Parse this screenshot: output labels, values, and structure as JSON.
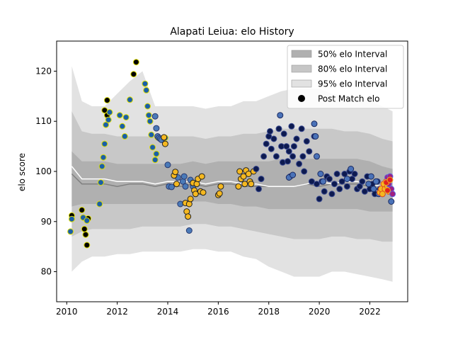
{
  "chart_data": {
    "type": "scatter",
    "title": "Alapati Leiua: elo History",
    "xlabel": "",
    "ylabel": "elo score",
    "xlim": [
      2009.6,
      2023.5
    ],
    "ylim": [
      74,
      126
    ],
    "x_ticks": [
      2010,
      2012,
      2014,
      2016,
      2018,
      2020,
      2022
    ],
    "y_ticks": [
      80,
      90,
      100,
      110,
      120
    ],
    "legend": {
      "placement": "top-right",
      "entries": [
        {
          "label": "50% elo Interval",
          "color": "#b0b0b0"
        },
        {
          "label": "80% elo Interval",
          "color": "#c6c6c6"
        },
        {
          "label": "95% elo Interval",
          "color": "#e2e2e2"
        },
        {
          "label": "Post Match elo",
          "color": "#000000"
        }
      ]
    },
    "interval_colors": {
      "i95": "#e2e2e2",
      "i80": "#c8c8c8",
      "i50": "#b0b0b0",
      "median": "#808080",
      "mean": "#ffffff"
    },
    "intervals": {
      "x": [
        2010.2,
        2010.6,
        2011.0,
        2011.5,
        2012.0,
        2012.5,
        2013.0,
        2013.5,
        2014.0,
        2014.5,
        2015.0,
        2015.5,
        2016.0,
        2016.5,
        2017.0,
        2017.5,
        2018.0,
        2018.5,
        2019.0,
        2019.5,
        2020.0,
        2020.5,
        2021.0,
        2021.5,
        2022.0,
        2022.5,
        2022.9
      ],
      "lo95": [
        80.0,
        82.0,
        83.0,
        83.0,
        83.5,
        83.5,
        84.0,
        84.0,
        84.0,
        84.0,
        84.5,
        84.5,
        84.0,
        84.0,
        83.0,
        82.5,
        81.0,
        80.0,
        79.0,
        79.0,
        79.0,
        80.0,
        80.0,
        79.5,
        79.0,
        78.5,
        78.0
      ],
      "lo80": [
        87.0,
        88.0,
        88.5,
        88.5,
        88.5,
        88.5,
        89.0,
        89.0,
        89.0,
        89.0,
        89.5,
        89.5,
        89.0,
        89.0,
        88.5,
        88.0,
        87.5,
        87.0,
        86.5,
        86.5,
        86.5,
        87.0,
        87.0,
        86.5,
        86.5,
        86.0,
        86.0
      ],
      "lo50": [
        93.0,
        93.5,
        93.5,
        93.5,
        93.5,
        93.5,
        93.5,
        93.5,
        93.5,
        93.5,
        94.0,
        94.0,
        93.5,
        93.5,
        93.0,
        93.0,
        92.5,
        92.5,
        92.5,
        92.5,
        92.5,
        92.5,
        92.5,
        92.5,
        92.0,
        92.0,
        92.0
      ],
      "med": [
        99.5,
        97.5,
        97.5,
        97.5,
        97.0,
        97.5,
        97.5,
        97.0,
        97.5,
        97.0,
        97.5,
        97.0,
        97.5,
        97.5,
        97.0,
        97.0,
        97.0,
        97.0,
        97.0,
        97.5,
        97.0,
        97.5,
        97.5,
        97.5,
        97.0,
        96.0,
        96.0
      ],
      "mean": [
        101.0,
        98.5,
        98.5,
        98.5,
        98.0,
        98.0,
        98.0,
        97.5,
        98.0,
        98.0,
        98.0,
        97.5,
        98.0,
        98.0,
        97.5,
        97.5,
        97.0,
        97.0,
        97.0,
        97.5,
        98.0,
        97.5,
        98.0,
        98.0,
        97.5,
        97.0,
        96.5
      ],
      "hi50": [
        104.0,
        102.0,
        102.0,
        102.0,
        101.5,
        101.5,
        101.5,
        101.5,
        101.5,
        101.5,
        102.0,
        101.5,
        102.0,
        102.0,
        102.0,
        102.0,
        102.0,
        102.5,
        102.5,
        102.5,
        102.5,
        102.5,
        102.5,
        102.5,
        102.0,
        101.0,
        100.5
      ],
      "hi80": [
        112.0,
        108.0,
        107.5,
        107.5,
        107.0,
        107.0,
        107.0,
        107.0,
        107.0,
        107.0,
        107.0,
        106.5,
        107.0,
        107.0,
        107.5,
        107.5,
        108.0,
        108.5,
        108.5,
        108.5,
        108.5,
        108.5,
        108.0,
        108.0,
        107.5,
        106.5,
        106.0
      ],
      "hi95": [
        121.0,
        114.0,
        113.0,
        113.0,
        115.5,
        118.0,
        120.0,
        113.0,
        113.0,
        113.0,
        113.0,
        112.5,
        113.0,
        113.0,
        114.0,
        114.0,
        115.0,
        116.0,
        116.5,
        116.5,
        116.5,
        115.5,
        115.0,
        115.0,
        114.0,
        113.0,
        112.0
      ]
    },
    "series": [
      {
        "name": "",
        "color": "#000000",
        "edge": "#dddd00",
        "x": [
          2010.2,
          2010.6,
          2010.7,
          2010.75,
          2010.8,
          2010.85,
          2011.5,
          2011.6,
          2011.6,
          2012.65,
          2012.75
        ],
        "y": [
          91.2,
          92.3,
          88.5,
          87.4,
          85.3,
          90.6,
          112.2,
          114.2,
          111.2,
          119.4,
          121.8
        ]
      },
      {
        "name": "",
        "color": "#1a5fa8",
        "edge": "#dddd00",
        "x": [
          2010.15,
          2010.2,
          2010.65,
          2010.8,
          2011.3,
          2011.35,
          2011.4,
          2011.45,
          2011.5,
          2011.55,
          2011.65,
          2011.7,
          2012.1,
          2012.2,
          2012.3,
          2012.35,
          2012.5,
          2013.1,
          2013.15,
          2013.2,
          2013.25,
          2013.3,
          2013.35,
          2013.4,
          2013.5,
          2013.55,
          2013.6,
          2013.9
        ],
        "y": [
          88.0,
          90.5,
          90.8,
          90.2,
          93.5,
          97.8,
          101.0,
          102.8,
          105.5,
          109.3,
          110.3,
          111.8,
          111.2,
          109.0,
          107.0,
          110.8,
          114.3,
          117.5,
          116.2,
          113.0,
          111.2,
          110.0,
          107.3,
          104.8,
          102.3,
          103.5,
          106.8,
          106.7
        ]
      },
      {
        "name": "",
        "color": "#4a7ab8",
        "edge": "#2a3a70",
        "x": [
          2013.5,
          2013.55,
          2013.6,
          2013.65,
          2013.7,
          2013.75,
          2014.0,
          2014.05,
          2014.15,
          2014.4,
          2014.5,
          2014.6,
          2014.65,
          2014.7,
          2014.85,
          2014.9,
          2015.0
        ],
        "y": [
          111.0,
          108.6,
          107.0,
          106.7,
          106.5,
          106.3,
          101.3,
          97.0,
          96.9,
          98.8,
          93.5,
          98.0,
          99.0,
          97.0,
          88.2,
          98.3,
          97.0
        ]
      },
      {
        "name": "",
        "color": "#f5b820",
        "edge": "#222222",
        "x": [
          2013.85,
          2013.9,
          2014.25,
          2014.3,
          2014.35,
          2014.7,
          2014.75,
          2014.8,
          2014.85,
          2014.9,
          2015.0,
          2015.05,
          2015.1,
          2015.15,
          2015.2,
          2015.3,
          2015.35,
          2015.4,
          2016.0,
          2016.05,
          2016.1,
          2016.8,
          2016.85,
          2016.9,
          2017.0,
          2017.05,
          2017.1,
          2017.2,
          2017.25,
          2017.3,
          2017.4
        ],
        "y": [
          106.8,
          105.5,
          99.2,
          99.9,
          97.5,
          93.7,
          92.0,
          91.0,
          93.5,
          94.5,
          97.7,
          96.2,
          95.5,
          97.5,
          98.5,
          96.0,
          99.0,
          95.8,
          95.3,
          95.6,
          97.0,
          97.0,
          100.0,
          98.5,
          99.0,
          97.5,
          100.2,
          99.5,
          98.0,
          97.5,
          100.0
        ]
      },
      {
        "name": "",
        "color": "#0d1a50",
        "edge": "#3a4a90",
        "x": [
          2017.5,
          2017.6,
          2017.7,
          2017.8,
          2017.9,
          2018.0,
          2018.05,
          2018.1,
          2018.2,
          2018.3,
          2018.4,
          2018.5,
          2018.55,
          2018.6,
          2018.7,
          2018.75,
          2018.8,
          2018.85,
          2018.9,
          2018.95,
          2019.0,
          2019.1,
          2019.2,
          2019.3,
          2019.35,
          2019.4,
          2019.5,
          2019.6,
          2019.7,
          2019.8,
          2019.9,
          2020.0,
          2020.1,
          2020.2,
          2020.3,
          2020.4,
          2020.5,
          2020.6,
          2020.7,
          2020.8,
          2020.9,
          2021.0,
          2021.1,
          2021.2,
          2021.3,
          2021.4,
          2021.5,
          2021.6,
          2021.7,
          2021.8,
          2021.9,
          2022.0,
          2022.1,
          2022.2,
          2022.3,
          2022.4,
          2022.5
        ],
        "y": [
          100.5,
          96.5,
          98.5,
          103.0,
          105.5,
          107.0,
          108.0,
          104.5,
          106.5,
          103.0,
          108.5,
          105.0,
          101.8,
          107.5,
          105.0,
          102.0,
          104.0,
          99.0,
          109.0,
          103.0,
          105.0,
          106.5,
          101.5,
          108.5,
          103.0,
          100.0,
          106.0,
          104.0,
          98.0,
          107.0,
          97.5,
          94.5,
          98.0,
          96.0,
          99.0,
          98.5,
          95.5,
          97.5,
          99.5,
          96.5,
          98.0,
          99.5,
          97.0,
          100.0,
          98.5,
          99.5,
          96.5,
          97.0,
          98.0,
          96.0,
          99.0,
          96.5,
          97.5,
          95.5,
          98.0,
          96.5,
          95.5
        ]
      },
      {
        "name": "",
        "color": "#4a72b8",
        "edge": "#1a2a60",
        "x": [
          2018.45,
          2018.8,
          2018.95,
          2019.8,
          2019.85,
          2019.9,
          2020.05,
          2020.15,
          2021.1,
          2021.25,
          2021.95,
          2022.05,
          2022.15,
          2022.25,
          2022.35,
          2022.5,
          2022.7,
          2022.85
        ],
        "y": [
          111.2,
          98.8,
          99.3,
          109.5,
          107.0,
          103.0,
          99.5,
          98.0,
          98.5,
          100.5,
          97.5,
          99.0,
          96.5,
          98.0,
          95.5,
          96.0,
          97.5,
          94.0
        ]
      },
      {
        "name": "",
        "color": "#f5b820",
        "edge": "#e05020",
        "x": [
          2022.4,
          2022.45,
          2022.5,
          2022.55,
          2022.6,
          2022.65,
          2022.7,
          2022.75
        ],
        "y": [
          95.8,
          96.5,
          95.5,
          97.5,
          96.5,
          98.0,
          97.0,
          96.0
        ]
      },
      {
        "name": "",
        "color": "#a02080",
        "edge": "#6060e0",
        "x": [
          2022.7,
          2022.75,
          2022.8,
          2022.85,
          2022.9
        ],
        "y": [
          98.8,
          97.5,
          99.0,
          96.5,
          95.5
        ]
      },
      {
        "name": "",
        "color": "#e02020",
        "edge": "#f0b020",
        "x": [
          2022.65,
          2022.7,
          2022.8
        ],
        "y": [
          97.8,
          96.2,
          98.3
        ]
      }
    ]
  }
}
